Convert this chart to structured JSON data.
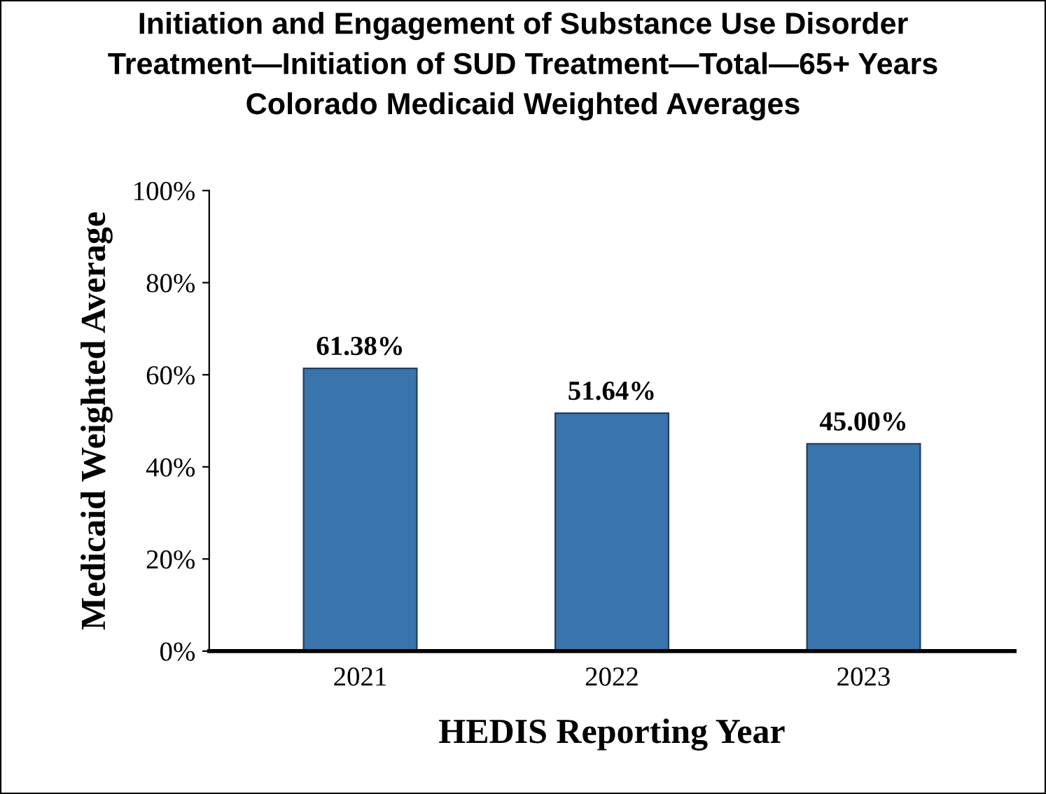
{
  "chart_data": {
    "type": "bar",
    "title": "Initiation and Engagement of Substance Use Disorder\nTreatment—Initiation of SUD Treatment—Total—65+ Years\nColorado Medicaid Weighted Averages",
    "xlabel": "HEDIS Reporting Year",
    "ylabel": "Medicaid Weighted Average",
    "categories": [
      "2021",
      "2022",
      "2023"
    ],
    "values": [
      61.38,
      51.64,
      45.0
    ],
    "value_labels": [
      "61.38%",
      "51.64%",
      "45.00%"
    ],
    "color": "#3a74ad",
    "ylim": [
      0,
      100
    ],
    "yticks": [
      {
        "value": 0,
        "label": "0%"
      },
      {
        "value": 20,
        "label": "20%"
      },
      {
        "value": 40,
        "label": "40%"
      },
      {
        "value": 60,
        "label": "60%"
      },
      {
        "value": 80,
        "label": "80%"
      },
      {
        "value": 100,
        "label": "100%"
      }
    ],
    "grid": false,
    "legend": false
  }
}
